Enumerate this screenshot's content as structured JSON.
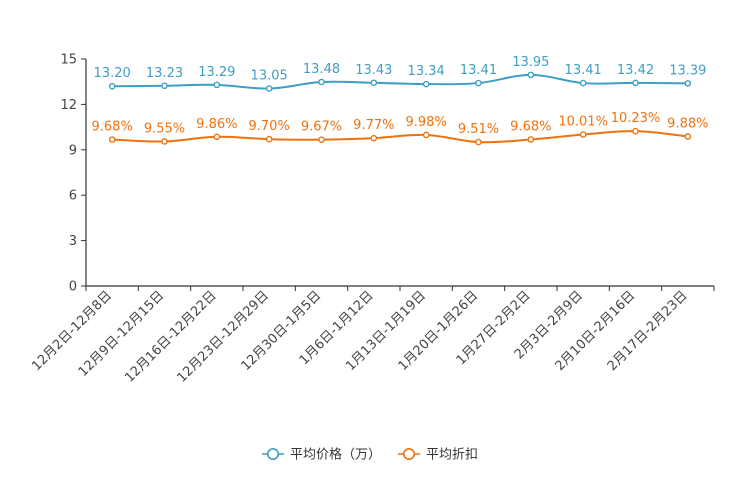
{
  "colors": {
    "price": "#3e9ec7",
    "discount": "#f0720f",
    "axis": "#333333",
    "tick_text": "#444444",
    "legend_text": "#333333",
    "background": "#ffffff"
  },
  "chart_data": {
    "type": "line",
    "title": "",
    "xlabel": "",
    "ylabel": "",
    "ylim": [
      0,
      15
    ],
    "yticks": [
      "0",
      "3",
      "6",
      "9",
      "12",
      "15"
    ],
    "grid": false,
    "legend_position": "bottom-center",
    "categories": [
      "12月2日-12月8日",
      "12月9日-12月15日",
      "12月16日-12月22日",
      "12月23日-12月29日",
      "12月30日-1月5日",
      "1月6日-1月12日",
      "1月13日-1月19日",
      "1月20日-1月26日",
      "1月27日-2月2日",
      "2月3日-2月9日",
      "2月10日-2月16日",
      "2月17日-2月23日"
    ],
    "series": [
      {
        "name": "平均价格（万）",
        "values": [
          13.2,
          13.23,
          13.29,
          13.05,
          13.48,
          13.43,
          13.34,
          13.41,
          13.95,
          13.41,
          13.42,
          13.39
        ],
        "labels": [
          "13.20",
          "13.23",
          "13.29",
          "13.05",
          "13.48",
          "13.43",
          "13.34",
          "13.41",
          "13.95",
          "13.41",
          "13.42",
          "13.39"
        ]
      },
      {
        "name": "平均折扣",
        "values": [
          9.68,
          9.55,
          9.86,
          9.7,
          9.67,
          9.77,
          9.98,
          9.51,
          9.68,
          10.01,
          10.23,
          9.88
        ],
        "labels": [
          "9.68%",
          "9.55%",
          "9.86%",
          "9.70%",
          "9.67%",
          "9.77%",
          "9.98%",
          "9.51%",
          "9.68%",
          "10.01%",
          "10.23%",
          "9.88%"
        ]
      }
    ]
  }
}
